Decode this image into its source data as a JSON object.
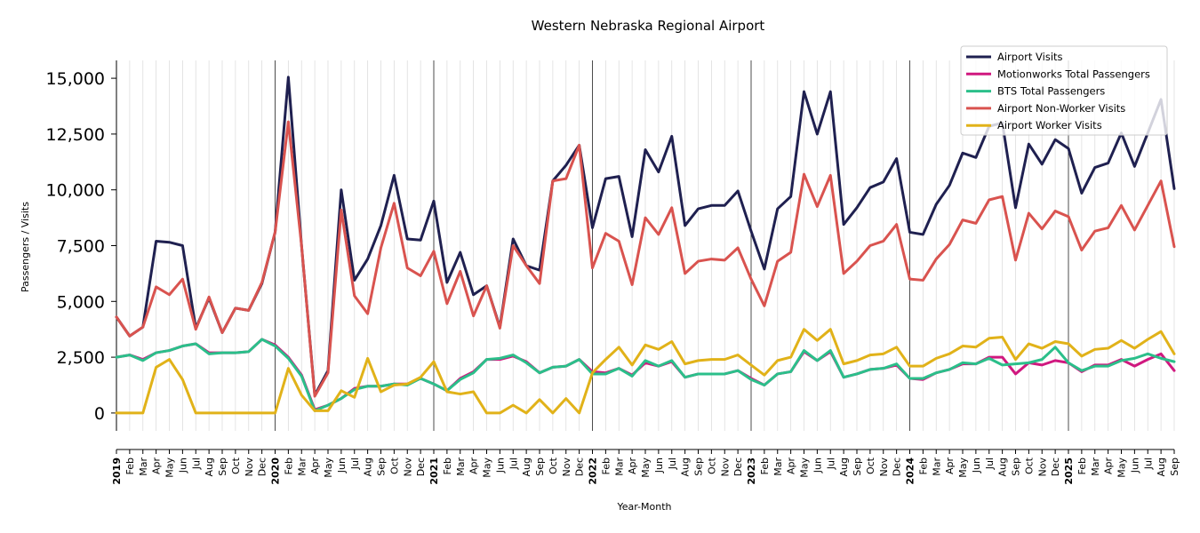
{
  "chart_data": {
    "type": "line",
    "title": "Western Nebraska Regional Airport",
    "xlabel": "Year-Month",
    "ylabel": "Passengers / Visits",
    "ylim": [
      -800,
      15800
    ],
    "yticks": [
      0,
      2500,
      5000,
      7500,
      10000,
      12500,
      15000
    ],
    "ytick_labels": [
      "0",
      "2,500",
      "5,000",
      "7,500",
      "10,000",
      "12,500",
      "15,000"
    ],
    "year_labels": [
      "2019",
      "2020",
      "2021",
      "2022",
      "2023",
      "2024",
      "2025"
    ],
    "month_labels": [
      "Feb",
      "Mar",
      "Apr",
      "May",
      "Jun",
      "Jul",
      "Aug",
      "Sep",
      "Oct",
      "Nov",
      "Dec"
    ],
    "x_start": "2019-01",
    "x_end": "2025-09",
    "grid": "vertical lines at each month; darker lines at each January",
    "legend_position": "top-right",
    "series": [
      {
        "name": "Airport Visits",
        "color": "#1f2050",
        "values": [
          4300,
          3450,
          3850,
          7700,
          7650,
          7500,
          3800,
          5150,
          3600,
          4700,
          4600,
          5800,
          8100,
          15050,
          7500,
          800,
          1900,
          10000,
          5950,
          6900,
          8400,
          10650,
          7800,
          7750,
          9500,
          5850,
          7200,
          5300,
          5700,
          3850,
          7800,
          6600,
          6400,
          10400,
          11100,
          12000,
          8300,
          10500,
          10600,
          7900,
          11800,
          10800,
          12400,
          8400,
          9150,
          9300,
          9300,
          9950,
          8150,
          6450,
          9150,
          9700,
          14400,
          12500,
          14400,
          8450,
          9200,
          10100,
          10350,
          11400,
          8100,
          8000,
          9350,
          10200,
          11650,
          11450,
          12850,
          13000,
          9200,
          12050,
          11150,
          12250,
          11850,
          9850,
          11000,
          11200,
          12550,
          11050,
          12550,
          14050,
          10050
        ]
      },
      {
        "name": "Motionworks Total Passengers",
        "color": "#d0187f",
        "values": [
          2500,
          2600,
          2400,
          2700,
          2800,
          3000,
          3100,
          2700,
          2700,
          2700,
          2750,
          3300,
          3050,
          2500,
          1700,
          150,
          350,
          650,
          1100,
          1200,
          1200,
          1300,
          1300,
          1550,
          1300,
          1000,
          1550,
          1850,
          2400,
          2400,
          2550,
          2300,
          1800,
          2050,
          2100,
          2400,
          1850,
          1800,
          2000,
          1700,
          2250,
          2100,
          2300,
          1600,
          1750,
          1750,
          1750,
          1900,
          1550,
          1250,
          1750,
          1850,
          2750,
          2350,
          2750,
          1600,
          1750,
          1950,
          2000,
          2150,
          1550,
          1500,
          1800,
          1950,
          2200,
          2200,
          2500,
          2500,
          1750,
          2250,
          2150,
          2350,
          2250,
          1850,
          2150,
          2150,
          2400,
          2100,
          2400,
          2650,
          1900
        ]
      },
      {
        "name": "BTS Total Passengers",
        "color": "#2bbf8a",
        "values": [
          2500,
          2600,
          2350,
          2700,
          2800,
          3000,
          3100,
          2650,
          2700,
          2700,
          2750,
          3300,
          3000,
          2450,
          1650,
          100,
          350,
          650,
          1050,
          1200,
          1200,
          1300,
          1250,
          1550,
          1300,
          1000,
          1500,
          1800,
          2400,
          2450,
          2600,
          2250,
          1800,
          2050,
          2100,
          2400,
          1750,
          1750,
          2000,
          1650,
          2350,
          2100,
          2350,
          1600,
          1750,
          1750,
          1750,
          1900,
          1500,
          1250,
          1750,
          1850,
          2800,
          2350,
          2800,
          1600,
          1750,
          1950,
          2000,
          2200,
          1550,
          1550,
          1800,
          1950,
          2250,
          2200,
          2450,
          2150,
          2200,
          2250,
          2400,
          2950,
          2250,
          1900,
          2100,
          2100,
          2350,
          2450,
          2650,
          2450,
          2300
        ]
      },
      {
        "name": "Airport Non-Worker Visits",
        "color": "#d9534f",
        "values": [
          4300,
          3450,
          3850,
          5650,
          5300,
          6000,
          3750,
          5200,
          3600,
          4700,
          4600,
          5850,
          8100,
          13050,
          7500,
          750,
          1800,
          9100,
          5250,
          4450,
          7400,
          9400,
          6500,
          6150,
          7250,
          4900,
          6350,
          4350,
          5700,
          3800,
          7500,
          6600,
          5800,
          10400,
          10500,
          12000,
          6500,
          8050,
          7700,
          5750,
          8750,
          8000,
          9200,
          6250,
          6800,
          6900,
          6850,
          7400,
          6000,
          4800,
          6800,
          7200,
          10700,
          9250,
          10650,
          6250,
          6800,
          7500,
          7700,
          8450,
          6000,
          5950,
          6900,
          7550,
          8650,
          8500,
          9550,
          9700,
          6850,
          8950,
          8250,
          9050,
          8800,
          7300,
          8150,
          8300,
          9300,
          8200,
          9300,
          10400,
          7450
        ]
      },
      {
        "name": "Airport Worker Visits",
        "color": "#e1b219",
        "values": [
          0,
          0,
          0,
          2050,
          2400,
          1500,
          0,
          0,
          0,
          0,
          0,
          0,
          0,
          2000,
          800,
          100,
          100,
          1000,
          700,
          2450,
          950,
          1250,
          1300,
          1600,
          2300,
          950,
          850,
          950,
          0,
          0,
          350,
          0,
          600,
          0,
          650,
          0,
          1800,
          2400,
          2950,
          2150,
          3050,
          2850,
          3200,
          2200,
          2350,
          2400,
          2400,
          2600,
          2150,
          1700,
          2350,
          2500,
          3750,
          3250,
          3750,
          2200,
          2350,
          2600,
          2650,
          2950,
          2100,
          2100,
          2450,
          2650,
          3000,
          2950,
          3350,
          3400,
          2400,
          3100,
          2900,
          3200,
          3100,
          2550,
          2850,
          2900,
          3250,
          2900,
          3300,
          3650,
          2650
        ]
      }
    ]
  }
}
